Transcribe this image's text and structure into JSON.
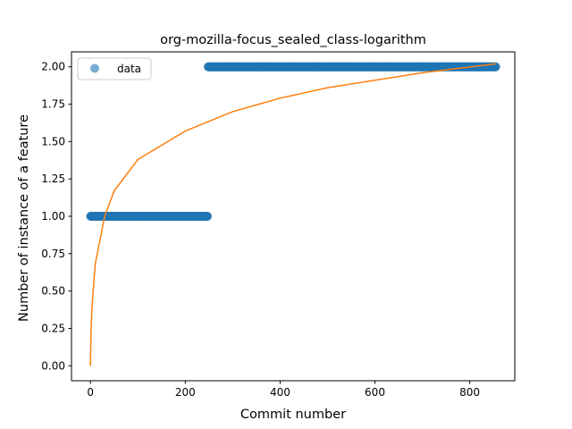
{
  "chart_data": {
    "type": "scatter",
    "title": "org-mozilla-focus_sealed_class-logarithm",
    "xlabel": "Commit number",
    "ylabel": "Number of instance of a feature",
    "xlim": [
      -40,
      895
    ],
    "ylim": [
      -0.1,
      2.1
    ],
    "xticks": [
      0,
      200,
      400,
      600,
      800
    ],
    "yticks": [
      0.0,
      0.25,
      0.5,
      0.75,
      1.0,
      1.25,
      1.5,
      1.75,
      2.0
    ],
    "ytick_labels": [
      "0.00",
      "0.25",
      "0.50",
      "0.75",
      "1.00",
      "1.25",
      "1.50",
      "1.75",
      "2.00"
    ],
    "grid": false,
    "legend": {
      "position": "upper-left",
      "entries": [
        "data"
      ]
    },
    "series": [
      {
        "name": "data",
        "kind": "scatter",
        "color": "#1f77b4",
        "segments": [
          {
            "x_start": 0,
            "x_end": 247,
            "y": 1.0
          },
          {
            "x_start": 248,
            "x_end": 855,
            "y": 2.0
          }
        ]
      },
      {
        "kind": "line",
        "color": "#ff7f0e",
        "points": [
          [
            0,
            0.0
          ],
          [
            1,
            0.2
          ],
          [
            3,
            0.38
          ],
          [
            10,
            0.68
          ],
          [
            30,
            1.0
          ],
          [
            50,
            1.17
          ],
          [
            100,
            1.38
          ],
          [
            200,
            1.57
          ],
          [
            300,
            1.7
          ],
          [
            400,
            1.79
          ],
          [
            500,
            1.86
          ],
          [
            600,
            1.91
          ],
          [
            700,
            1.96
          ],
          [
            855,
            2.02
          ]
        ]
      }
    ]
  }
}
